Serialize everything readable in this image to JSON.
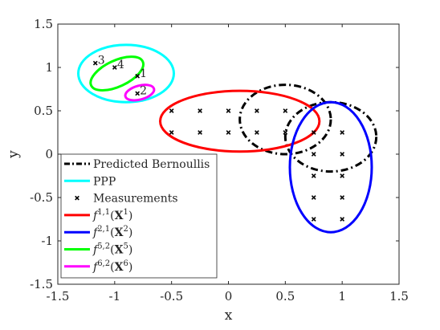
{
  "chart_data": {
    "type": "scatter",
    "title": "",
    "xlabel": "x",
    "ylabel": "y",
    "xlim": [
      -1.5,
      1.5
    ],
    "ylim": [
      -1.5,
      1.5
    ],
    "xticks": [
      "-1.5",
      "-1",
      "-0.5",
      "0",
      "0.5",
      "1",
      "1.5"
    ],
    "yticks": [
      "-1.5",
      "-1",
      "-0.5",
      "0",
      "0.5",
      "1",
      "1.5"
    ],
    "grid": false,
    "legend_position": "bottom-left",
    "measurements": {
      "name": "Measurements",
      "points": [
        {
          "x": -0.5,
          "y": 0.5
        },
        {
          "x": -0.25,
          "y": 0.5
        },
        {
          "x": 0,
          "y": 0.5
        },
        {
          "x": 0.25,
          "y": 0.5
        },
        {
          "x": 0.5,
          "y": 0.5
        },
        {
          "x": -0.5,
          "y": 0.25
        },
        {
          "x": -0.25,
          "y": 0.25
        },
        {
          "x": 0,
          "y": 0.25
        },
        {
          "x": 0.25,
          "y": 0.25
        },
        {
          "x": 0.5,
          "y": 0.25
        },
        {
          "x": 0.75,
          "y": 0.25
        },
        {
          "x": 1,
          "y": 0.25
        },
        {
          "x": 0.75,
          "y": 0
        },
        {
          "x": 1,
          "y": 0
        },
        {
          "x": 0.75,
          "y": -0.25
        },
        {
          "x": 1,
          "y": -0.25
        },
        {
          "x": 0.75,
          "y": -0.5
        },
        {
          "x": 1,
          "y": -0.5
        },
        {
          "x": 0.75,
          "y": -0.75
        },
        {
          "x": 1,
          "y": -0.75
        },
        {
          "x": -0.8,
          "y": 0.9
        },
        {
          "x": -0.8,
          "y": 0.7
        },
        {
          "x": -1.17,
          "y": 1.05
        },
        {
          "x": -1.0,
          "y": 1.0
        }
      ]
    },
    "annotations": [
      {
        "text": "1",
        "x": -0.8,
        "y": 0.9
      },
      {
        "text": "2",
        "x": -0.8,
        "y": 0.7
      },
      {
        "text": "3",
        "x": -1.17,
        "y": 1.05
      },
      {
        "text": "4",
        "x": -1.0,
        "y": 1.0
      }
    ],
    "ellipses": [
      {
        "series": "Predicted Bernoullis",
        "cx": 0.5,
        "cy": 0.4,
        "rx": 0.4,
        "ry": 0.4,
        "color": "#000000",
        "dash": "dashdot"
      },
      {
        "series": "Predicted Bernoullis",
        "cx": 0.9,
        "cy": 0.2,
        "rx": 0.4,
        "ry": 0.4,
        "color": "#000000",
        "dash": "dashdot"
      },
      {
        "series": "PPP",
        "cx": -0.9,
        "cy": 0.93,
        "rx": 0.42,
        "ry": 0.33,
        "color": "#00ffff",
        "dash": "solid"
      },
      {
        "series": "f1",
        "cx": 0.1,
        "cy": 0.38,
        "rx": 0.7,
        "ry": 0.35,
        "color": "#ff0000",
        "dash": "solid"
      },
      {
        "series": "f2",
        "cx": 0.9,
        "cy": -0.15,
        "rx": 0.36,
        "ry": 0.75,
        "color": "#0000ff",
        "dash": "solid"
      },
      {
        "series": "f5",
        "cx": -0.98,
        "cy": 0.93,
        "rx": 0.25,
        "ry": 0.15,
        "color": "#00ff00",
        "dash": "solid",
        "rotate": -25
      },
      {
        "series": "f6",
        "cx": -0.78,
        "cy": 0.71,
        "rx": 0.13,
        "ry": 0.08,
        "color": "#ff00ff",
        "dash": "solid",
        "rotate": -15
      }
    ],
    "legend": [
      {
        "key": "bern",
        "label": "Predicted Bernoullis",
        "color": "#000000",
        "style": "dashdot"
      },
      {
        "key": "ppp",
        "label": "PPP",
        "color": "#00ffff",
        "style": "solid"
      },
      {
        "key": "meas",
        "label": "Measurements",
        "color": "#000000",
        "style": "marker"
      },
      {
        "key": "f1",
        "label": "f1,1(X1)",
        "sup1": "1,1",
        "sub": "1",
        "color": "#ff0000",
        "style": "solid"
      },
      {
        "key": "f2",
        "label": "f2,1(X2)",
        "sup1": "2,1",
        "sub": "2",
        "color": "#0000ff",
        "style": "solid"
      },
      {
        "key": "f5",
        "label": "f5,2(X5)",
        "sup1": "5,2",
        "sub": "5",
        "color": "#00ff00",
        "style": "solid"
      },
      {
        "key": "f6",
        "label": "f6,2(X6)",
        "sup1": "6,2",
        "sub": "6",
        "color": "#ff00ff",
        "style": "solid"
      }
    ]
  }
}
